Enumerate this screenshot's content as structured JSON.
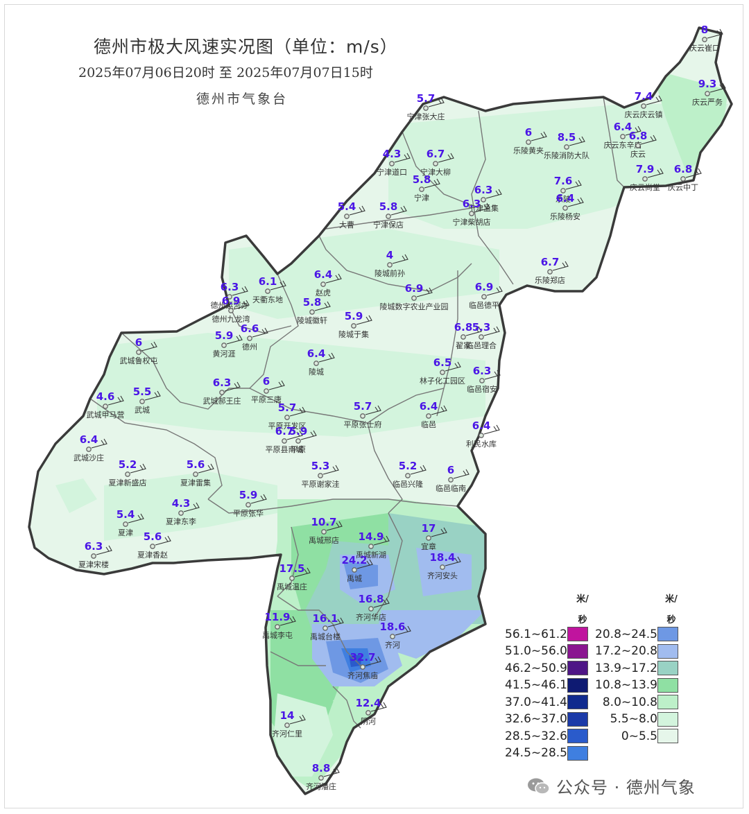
{
  "title": "德州市极大风速实况图（单位：m/s）",
  "subtitle": "2025年07月06日20时   至   2025年07月07日15时",
  "agency": "德州市气象台",
  "watermark": "公众号 · 德州气象",
  "colors": {
    "boundary": "#3a3a3a",
    "value_text": "#4b16e6",
    "station_name": "#333333"
  },
  "legend": {
    "unit_left": "米/秒",
    "unit_right": "米/秒",
    "left": [
      {
        "label": "56.1~61.2",
        "color": "#c0149e"
      },
      {
        "label": "51.0~56.0",
        "color": "#8a1690"
      },
      {
        "label": "46.2~50.9",
        "color": "#4e1686"
      },
      {
        "label": "41.5~46.1",
        "color": "#0e1a72"
      },
      {
        "label": "37.0~41.4",
        "color": "#102a8e"
      },
      {
        "label": "32.6~37.0",
        "color": "#1b3aa8"
      },
      {
        "label": "28.5~32.6",
        "color": "#2a5bcb"
      },
      {
        "label": "24.5~28.5",
        "color": "#3f7fe0"
      }
    ],
    "right": [
      {
        "label": "20.8~24.5",
        "color": "#6e98e4"
      },
      {
        "label": "17.2~20.8",
        "color": "#a1bcef"
      },
      {
        "label": "13.9~17.2",
        "color": "#99d2c4"
      },
      {
        "label": "10.8~13.9",
        "color": "#8fe0a3"
      },
      {
        "label": "8.0~10.8",
        "color": "#bdf0c9"
      },
      {
        "label": "5.5~8.0",
        "color": "#d3f4dd"
      },
      {
        "label": "0~5.5",
        "color": "#e6f6ea"
      }
    ]
  },
  "stations": [
    {
      "name": "庆云崔口",
      "value": "8"
    },
    {
      "name": "庆云严务",
      "value": "9.3"
    },
    {
      "name": "庆云庆云镇",
      "value": "7.4"
    },
    {
      "name": "庆云东辛店",
      "value": "6.4"
    },
    {
      "name": "庆云",
      "value": "6.8"
    },
    {
      "name": "庆云尚堂",
      "value": "7.9"
    },
    {
      "name": "庆云中丁",
      "value": "6.8"
    },
    {
      "name": "宁津张大庄",
      "value": "5.7"
    },
    {
      "name": "宁津道口",
      "value": "4.3"
    },
    {
      "name": "宁津大柳",
      "value": "6.7"
    },
    {
      "name": "宁津",
      "value": "5.8"
    },
    {
      "name": "乐陵黄夹",
      "value": "6"
    },
    {
      "name": "乐陵消防大队",
      "value": "8.5"
    },
    {
      "name": "乐陵",
      "value": "7.6"
    },
    {
      "name": "乐陵杨安",
      "value": "6.4"
    },
    {
      "name": "宁津孟集",
      "value": "6.3"
    },
    {
      "name": "宁津柴胡店",
      "value": "6.3"
    },
    {
      "name": "大曹",
      "value": "5.4"
    },
    {
      "name": "宁津保店",
      "value": "5.8"
    },
    {
      "name": "陵城前孙",
      "value": "4"
    },
    {
      "name": "乐陵郑店",
      "value": "6.7"
    },
    {
      "name": "德州运河办",
      "value": "6.3"
    },
    {
      "name": "德州九龙湾",
      "value": "6.9"
    },
    {
      "name": "天衢东地",
      "value": "6.1"
    },
    {
      "name": "赵虎",
      "value": "6.4"
    },
    {
      "name": "陵城徽轩",
      "value": "5.8"
    },
    {
      "name": "陵城数字农业产业园",
      "value": "6.9"
    },
    {
      "name": "临邑德平",
      "value": "6.9"
    },
    {
      "name": "黄河涯",
      "value": "5.9"
    },
    {
      "name": "德州",
      "value": "6.6"
    },
    {
      "name": "陵城于集",
      "value": "5.9"
    },
    {
      "name": "翟家",
      "value": "6.8"
    },
    {
      "name": "临邑理合",
      "value": "5.3"
    },
    {
      "name": "武城鲁权屯",
      "value": "6"
    },
    {
      "name": "陵城",
      "value": "6.4"
    },
    {
      "name": "林子化工园区",
      "value": "6.5"
    },
    {
      "name": "临邑宿安",
      "value": "6.3"
    },
    {
      "name": "武城郝王庄",
      "value": "6.3"
    },
    {
      "name": "平原三唐",
      "value": "6"
    },
    {
      "name": "武城甲马营",
      "value": "4.6"
    },
    {
      "name": "武城",
      "value": "5.5"
    },
    {
      "name": "平原开发区",
      "value": "5.7"
    },
    {
      "name": "平原张士府",
      "value": "5.7"
    },
    {
      "name": "临邑",
      "value": "6.4"
    },
    {
      "name": "平原县南城",
      "value": "6.7"
    },
    {
      "name": "平原",
      "value": "5.9"
    },
    {
      "name": "利民水库",
      "value": "6.4"
    },
    {
      "name": "武城沙庄",
      "value": "6.4"
    },
    {
      "name": "夏津新盛店",
      "value": "5.2"
    },
    {
      "name": "夏津雷集",
      "value": "5.6"
    },
    {
      "name": "平原谢家洼",
      "value": "5.3"
    },
    {
      "name": "临邑兴隆",
      "value": "5.2"
    },
    {
      "name": "临邑临南",
      "value": "6"
    },
    {
      "name": "平原张华",
      "value": "5.9"
    },
    {
      "name": "夏津东李",
      "value": "4.3"
    },
    {
      "name": "夏津",
      "value": "5.4"
    },
    {
      "name": "夏津香赵",
      "value": "5.6"
    },
    {
      "name": "夏津宋楼",
      "value": "6.3"
    },
    {
      "name": "禹城邢店",
      "value": "10.7"
    },
    {
      "name": "禹城新湖",
      "value": "14.9"
    },
    {
      "name": "宜章",
      "value": "17"
    },
    {
      "name": "齐河安头",
      "value": "18.4"
    },
    {
      "name": "禹城温庄",
      "value": "17.5"
    },
    {
      "name": "禹城",
      "value": "24.2"
    },
    {
      "name": "齐河华店",
      "value": "16.8"
    },
    {
      "name": "禹城李屯",
      "value": "11.9"
    },
    {
      "name": "禹城台楼",
      "value": "16.1"
    },
    {
      "name": "齐河",
      "value": "18.6"
    },
    {
      "name": "齐河焦庙",
      "value": "32.7"
    },
    {
      "name": "齐河仁里",
      "value": "14"
    },
    {
      "name": "阴河",
      "value": "12.4"
    },
    {
      "name": "齐河潘庄",
      "value": "8.8"
    }
  ]
}
